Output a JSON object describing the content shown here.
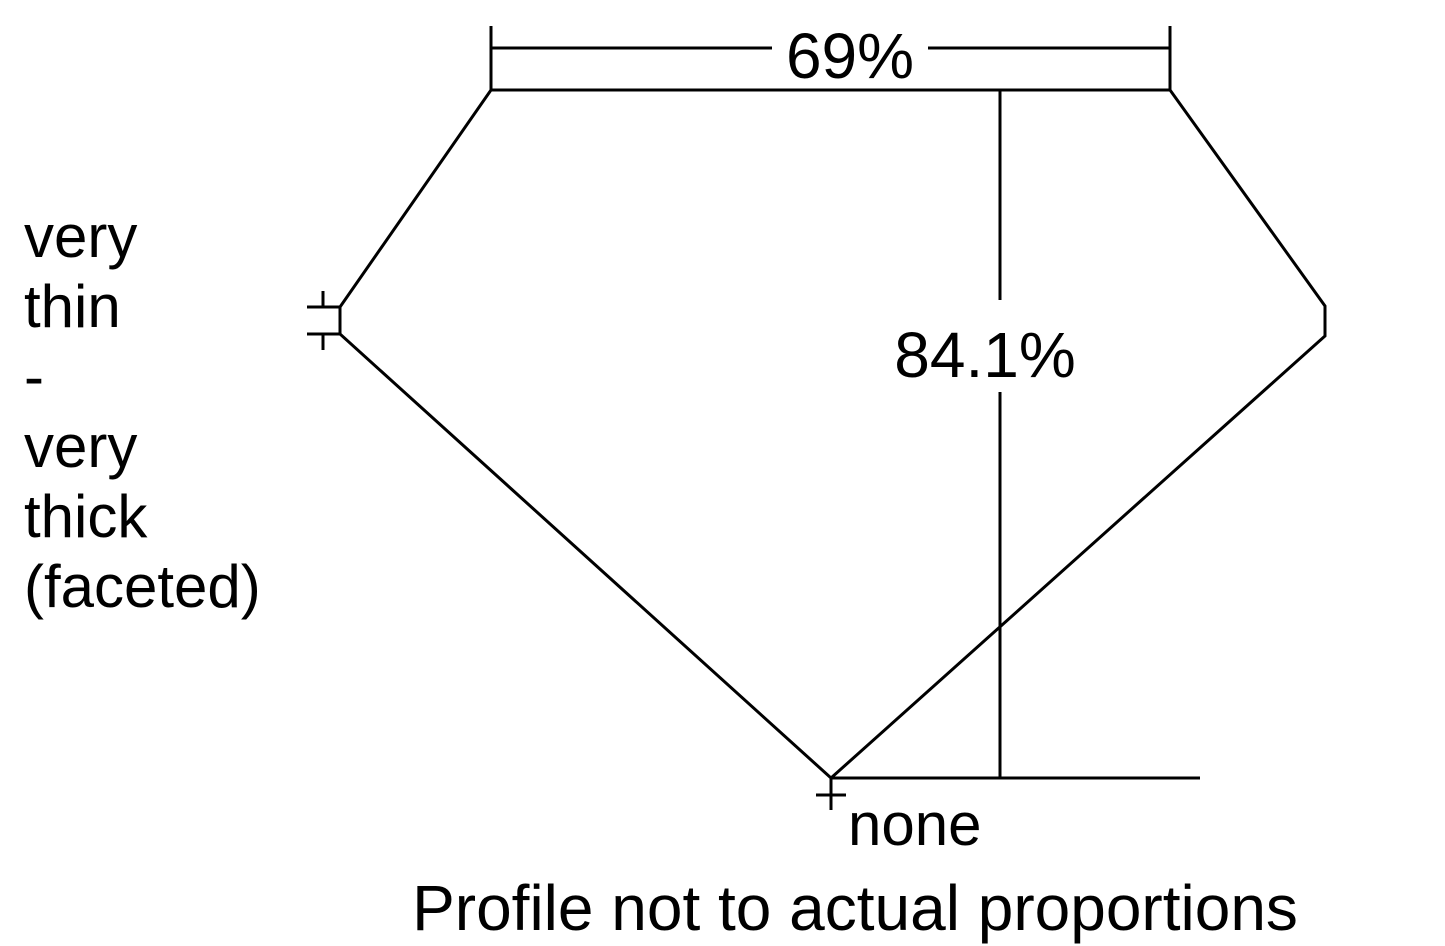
{
  "labels": {
    "table_percent": "69%",
    "depth_percent": "84.1%",
    "girdle_lines": [
      "very",
      "thin",
      "-",
      "very",
      "thick",
      "(faceted)"
    ],
    "culet": "none",
    "caption": "Profile not to actual proportions"
  },
  "colors": {
    "stroke": "#000000",
    "background": "#ffffff"
  }
}
